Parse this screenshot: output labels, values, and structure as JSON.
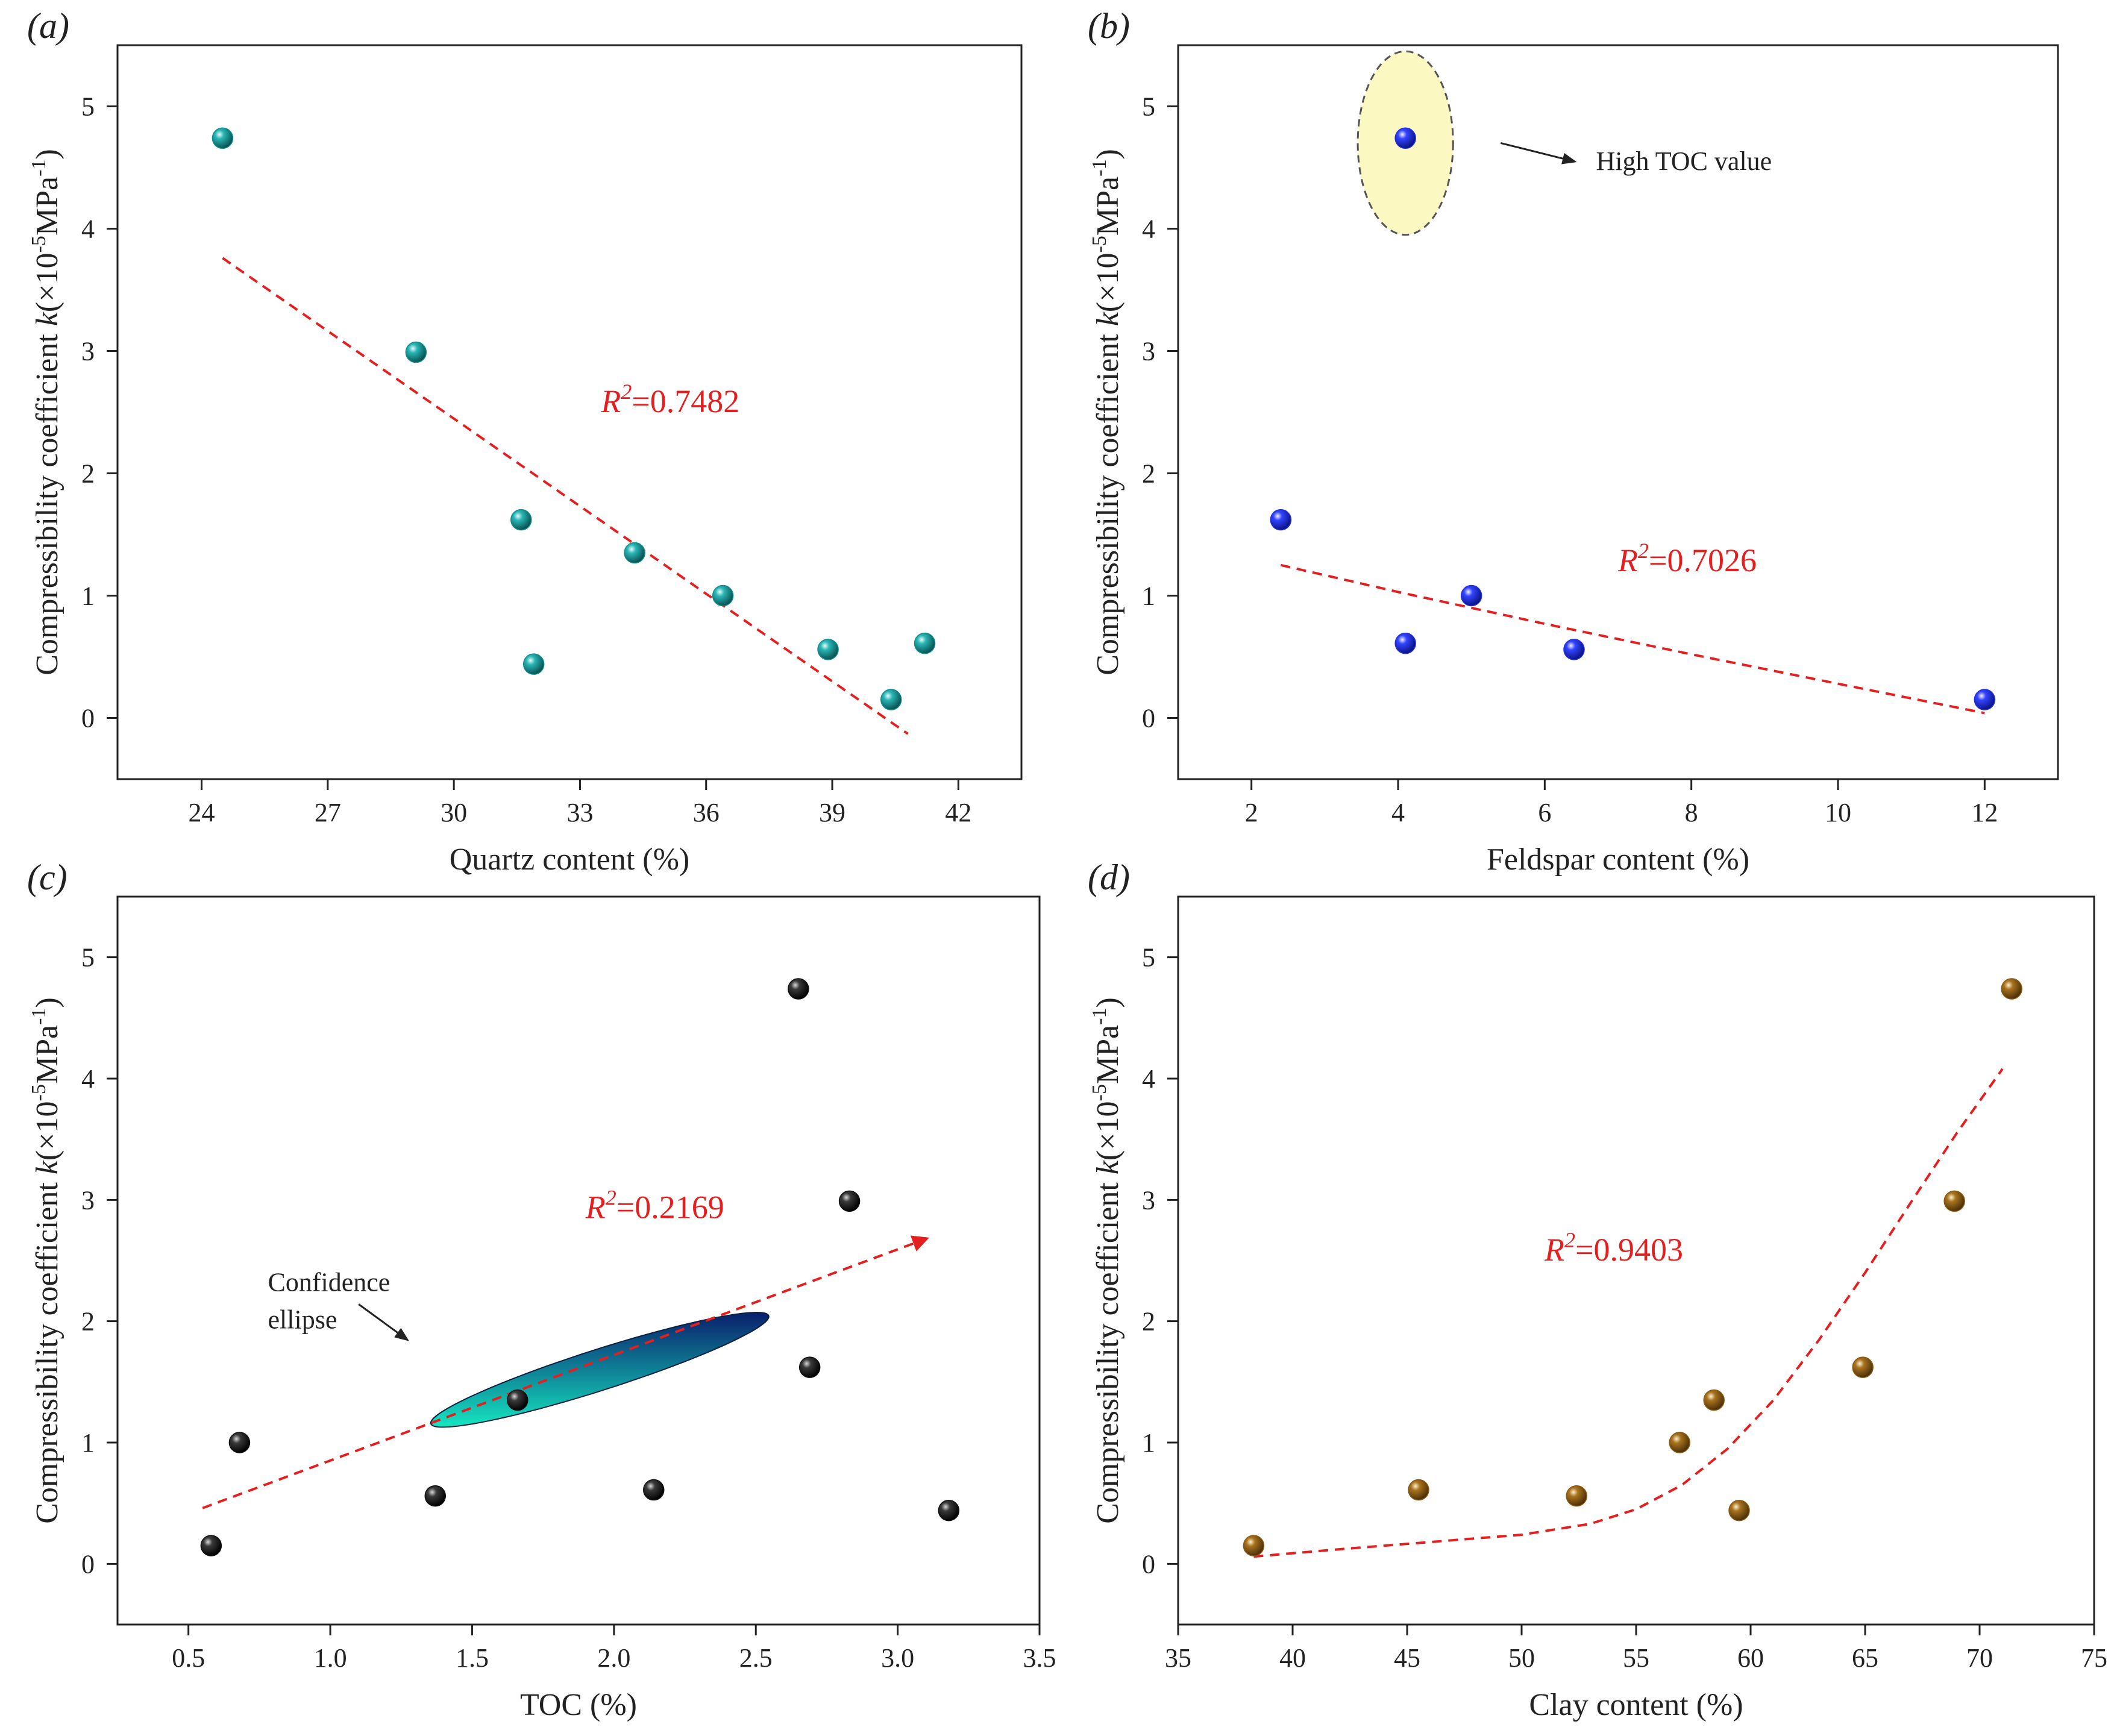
{
  "figure": {
    "shared_ylabel_parts": {
      "prefix": "Compressibility coefficient ",
      "k": "k",
      "mid": "(×10",
      "exp1": "-5",
      "unit": "MPa",
      "exp2": "-1",
      "suffix": ")"
    }
  },
  "colors": {
    "fit_line": "#e41f1f",
    "axis": "#222222",
    "panel_a_points": "#0f8c8c",
    "panel_b_points": "#1f2fe6",
    "panel_c_points": "#111111",
    "panel_d_points": "#8b5a12",
    "ellipse_b_fill": "#fbf8c2",
    "ellipse_c_top": "#0a1f6b",
    "ellipse_c_bottom": "#16e6c0"
  },
  "chart_data": [
    {
      "id": "a",
      "panel_label": "(a)",
      "type": "scatter",
      "xlabel": "Quartz content (%)",
      "xlim": [
        22,
        43.5
      ],
      "ylim": [
        -0.5,
        5.5
      ],
      "xticks": [
        24,
        27,
        30,
        33,
        36,
        39,
        42
      ],
      "xtick_labels": [
        "24",
        "27",
        "30",
        "33",
        "36",
        "39",
        "42"
      ],
      "yticks": [
        0,
        1,
        2,
        3,
        4,
        5
      ],
      "ytick_labels": [
        "0",
        "1",
        "2",
        "3",
        "4",
        "5"
      ],
      "points": [
        [
          24.5,
          4.74
        ],
        [
          29.1,
          2.99
        ],
        [
          31.6,
          1.62
        ],
        [
          31.9,
          0.44
        ],
        [
          34.3,
          1.35
        ],
        [
          36.4,
          1.0
        ],
        [
          38.9,
          0.56
        ],
        [
          40.4,
          0.15
        ],
        [
          41.2,
          0.61
        ]
      ],
      "fit": {
        "kind": "linear",
        "x": [
          24.5,
          40.8
        ],
        "y": [
          3.76,
          -0.13
        ]
      },
      "r2_label": {
        "r": "R",
        "sup": "2",
        "value": "=0.7482",
        "at": [
          33.5,
          2.5
        ]
      }
    },
    {
      "id": "b",
      "panel_label": "(b)",
      "type": "scatter",
      "xlabel": "Feldspar content (%)",
      "xlim": [
        1,
        13
      ],
      "ylim": [
        -0.5,
        5.5
      ],
      "xticks": [
        2,
        4,
        6,
        8,
        10,
        12
      ],
      "xtick_labels": [
        "2",
        "4",
        "6",
        "8",
        "10",
        "12"
      ],
      "yticks": [
        0,
        1,
        2,
        3,
        4,
        5
      ],
      "ytick_labels": [
        "0",
        "1",
        "2",
        "3",
        "4",
        "5"
      ],
      "points": [
        [
          2.4,
          1.62
        ],
        [
          4.1,
          4.74
        ],
        [
          4.1,
          0.61
        ],
        [
          5.0,
          1.0
        ],
        [
          6.4,
          0.56
        ],
        [
          12.0,
          0.15
        ]
      ],
      "fit": {
        "kind": "curve",
        "x": [
          2.4,
          4,
          6,
          8,
          10,
          12
        ],
        "y": [
          1.25,
          1.03,
          0.77,
          0.52,
          0.28,
          0.04
        ]
      },
      "highlight_ellipse": {
        "center": [
          4.1,
          4.7
        ],
        "rx": 0.65,
        "ry": 0.75
      },
      "annotation": {
        "text": "High TOC value",
        "arrow_from": [
          5.4,
          4.7
        ],
        "arrow_to": [
          6.4,
          4.55
        ],
        "text_at": [
          6.7,
          4.48
        ]
      },
      "r2_label": {
        "r": "R",
        "sup": "2",
        "value": "=0.7026",
        "at": [
          7.0,
          1.2
        ]
      }
    },
    {
      "id": "c",
      "panel_label": "(c)",
      "type": "scatter",
      "xlabel": "TOC (%)",
      "xlim": [
        0.25,
        3.5
      ],
      "ylim": [
        -0.5,
        5.5
      ],
      "xticks": [
        0.5,
        1.0,
        1.5,
        2.0,
        2.5,
        3.0,
        3.5
      ],
      "xtick_labels": [
        "0.5",
        "1.0",
        "1.5",
        "2.0",
        "2.5",
        "3.0",
        "3.5"
      ],
      "yticks": [
        0,
        1,
        2,
        3,
        4,
        5
      ],
      "ytick_labels": [
        "0",
        "1",
        "2",
        "3",
        "4",
        "5"
      ],
      "points": [
        [
          0.58,
          0.15
        ],
        [
          0.68,
          1.0
        ],
        [
          1.37,
          0.56
        ],
        [
          1.66,
          1.35
        ],
        [
          2.14,
          0.61
        ],
        [
          2.65,
          4.74
        ],
        [
          2.69,
          1.62
        ],
        [
          2.83,
          2.99
        ],
        [
          3.18,
          0.44
        ]
      ],
      "fit": {
        "kind": "arrow",
        "x": [
          0.55,
          3.1
        ],
        "y": [
          0.46,
          2.68
        ]
      },
      "confidence_ellipse": {
        "center": [
          1.95,
          1.6
        ],
        "semi_major": 1.66,
        "semi_minor": 0.3,
        "angle_deg": 56
      },
      "annotation": {
        "text_lines": [
          "Confidence",
          "ellipse"
        ],
        "arrow_from": [
          1.1,
          2.14
        ],
        "arrow_to": [
          1.27,
          1.85
        ],
        "text_at": [
          0.78,
          2.25
        ]
      },
      "r2_label": {
        "r": "R",
        "sup": "2",
        "value": "=0.2169",
        "at": [
          1.9,
          2.85
        ]
      }
    },
    {
      "id": "d",
      "panel_label": "(d)",
      "type": "scatter",
      "xlabel": "Clay content (%)",
      "xlim": [
        35,
        75
      ],
      "ylim": [
        -0.5,
        5.5
      ],
      "xticks": [
        35,
        40,
        45,
        50,
        55,
        60,
        65,
        70,
        75
      ],
      "xtick_labels": [
        "35",
        "40",
        "45",
        "50",
        "55",
        "60",
        "65",
        "70",
        "75"
      ],
      "yticks": [
        0,
        1,
        2,
        3,
        4,
        5
      ],
      "ytick_labels": [
        "0",
        "1",
        "2",
        "3",
        "4",
        "5"
      ],
      "points": [
        [
          38.3,
          0.15
        ],
        [
          45.5,
          0.61
        ],
        [
          52.4,
          0.56
        ],
        [
          56.9,
          1.0
        ],
        [
          58.4,
          1.35
        ],
        [
          59.5,
          0.44
        ],
        [
          64.9,
          1.62
        ],
        [
          68.9,
          2.99
        ],
        [
          71.4,
          4.74
        ]
      ],
      "fit": {
        "kind": "curve",
        "x": [
          38.3,
          42,
          46,
          50,
          53,
          55,
          57,
          59,
          61,
          63,
          65,
          67,
          69,
          71
        ],
        "y": [
          0.06,
          0.12,
          0.18,
          0.24,
          0.33,
          0.45,
          0.65,
          0.95,
          1.35,
          1.85,
          2.4,
          2.98,
          3.55,
          4.08
        ]
      },
      "r2_label": {
        "r": "R",
        "sup": "2",
        "value": "=0.9403",
        "at": [
          51,
          2.5
        ]
      }
    }
  ]
}
